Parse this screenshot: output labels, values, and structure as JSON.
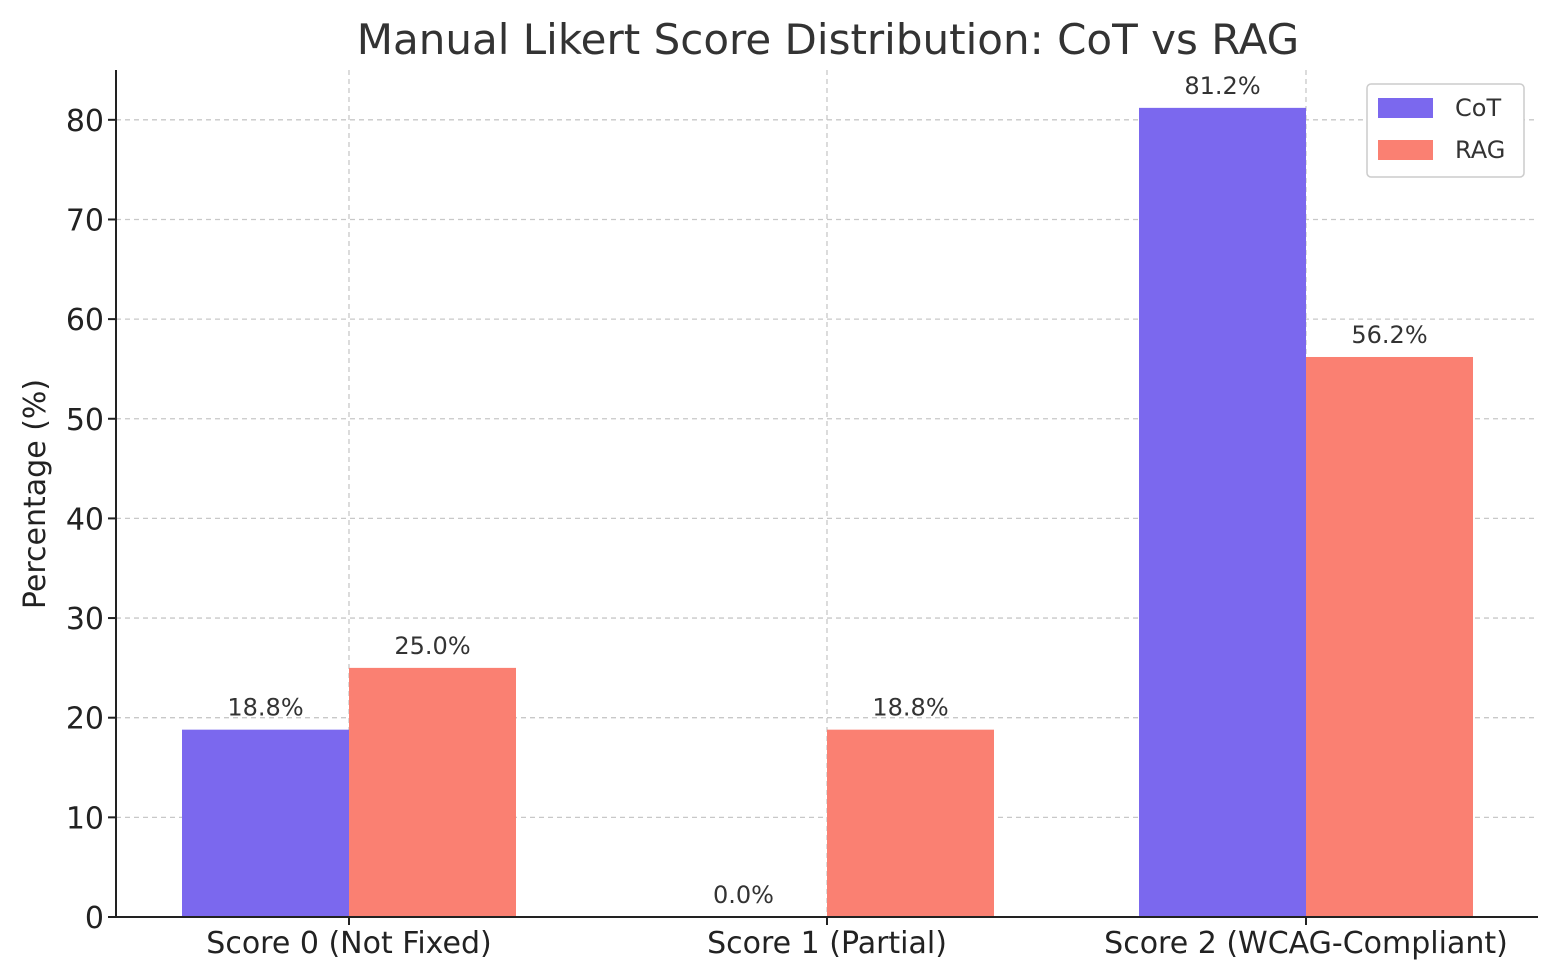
{
  "chart_data": {
    "type": "bar",
    "title": "Manual Likert Score Distribution: CoT vs RAG",
    "xlabel": "",
    "ylabel": "Percentage (%)",
    "ylim": [
      0,
      85
    ],
    "yticks": [
      0,
      10,
      20,
      30,
      40,
      50,
      60,
      70,
      80
    ],
    "categories": [
      "Score 0 (Not Fixed)",
      "Score 1 (Partial)",
      "Score 2 (WCAG-Compliant)"
    ],
    "series": [
      {
        "name": "CoT",
        "color": "#7B68EE",
        "values": [
          18.8,
          0.0,
          81.2
        ],
        "labels": [
          "18.8%",
          "0.0%",
          "81.2%"
        ]
      },
      {
        "name": "RAG",
        "color": "#FA8072",
        "values": [
          25.0,
          18.8,
          56.2
        ],
        "labels": [
          "25.0%",
          "18.8%",
          "56.2%"
        ]
      }
    ],
    "grid": true,
    "legend": "top-right"
  }
}
